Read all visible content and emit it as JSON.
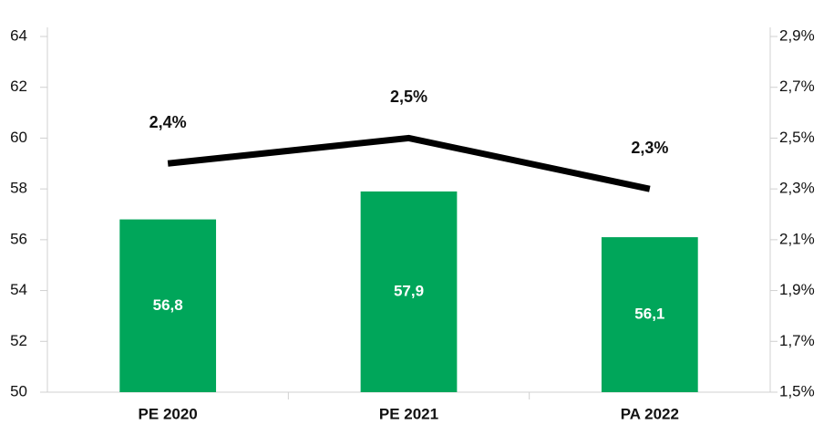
{
  "chart_data": {
    "type": "bar",
    "categories": [
      "PE 2020",
      "PE 2021",
      "PA 2022"
    ],
    "series": [
      {
        "type": "bar",
        "color": "#00a65a",
        "values": [
          56.8,
          57.9,
          56.1
        ],
        "value_labels": [
          "56,8",
          "57,9",
          "56,1"
        ]
      },
      {
        "type": "line",
        "axis": "y2",
        "color": "#000000",
        "values": [
          2.4,
          2.5,
          2.3
        ],
        "value_labels": [
          "2,4%",
          "2,5%",
          "2,3%"
        ]
      }
    ],
    "ylim": [
      50,
      64
    ],
    "yticks": [
      50,
      52,
      54,
      56,
      58,
      60,
      62,
      64
    ],
    "y2lim": [
      1.5,
      2.9
    ],
    "y2ticks": [
      {
        "value": 1.5,
        "label": "1,5%"
      },
      {
        "value": 1.7,
        "label": "1,7%"
      },
      {
        "value": 1.9,
        "label": "1,9%"
      },
      {
        "value": 2.1,
        "label": "2,1%"
      },
      {
        "value": 2.3,
        "label": "2,3%"
      },
      {
        "value": 2.5,
        "label": "2,5%"
      },
      {
        "value": 2.7,
        "label": "2,7%"
      },
      {
        "value": 2.9,
        "label": "2,9%"
      }
    ]
  }
}
